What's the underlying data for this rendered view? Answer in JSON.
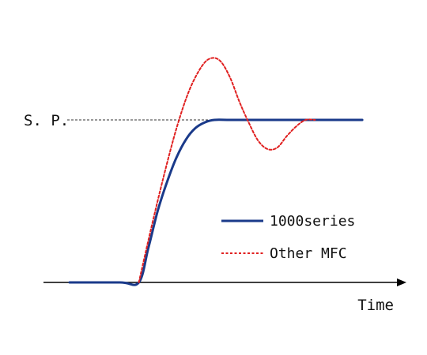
{
  "chart_data": {
    "type": "line",
    "xlabel": "Time",
    "ylabel": "",
    "setpoint_label": "S. P.",
    "setpoint": 1.0,
    "xlim": [
      0,
      10
    ],
    "ylim": [
      0,
      1.5
    ],
    "legend_placement": "center-right",
    "grid": false,
    "series": [
      {
        "name": "1000series",
        "color": "#1a3a8a",
        "style": "solid",
        "x": [
          0,
          1.6,
          2.2,
          2.5,
          2.8,
          3.1,
          3.4,
          3.7,
          4.0,
          4.3,
          4.6,
          5.1,
          6.0,
          7.5,
          9.3
        ],
        "y": [
          0,
          0,
          0,
          0.21,
          0.44,
          0.62,
          0.77,
          0.88,
          0.95,
          0.985,
          1.0,
          1.0,
          1.0,
          1.0,
          1.0
        ]
      },
      {
        "name": "Other MFC",
        "color": "#e02020",
        "style": "dotted",
        "x": [
          2.2,
          2.6,
          3.0,
          3.4,
          3.8,
          4.2,
          4.5,
          4.8,
          5.1,
          5.4,
          5.7,
          6.0,
          6.3,
          6.6,
          6.9,
          7.2,
          7.5,
          7.8
        ],
        "y": [
          0,
          0.34,
          0.66,
          0.95,
          1.18,
          1.33,
          1.38,
          1.36,
          1.26,
          1.11,
          0.98,
          0.87,
          0.82,
          0.83,
          0.9,
          0.96,
          1.0,
          1.0
        ]
      }
    ]
  }
}
